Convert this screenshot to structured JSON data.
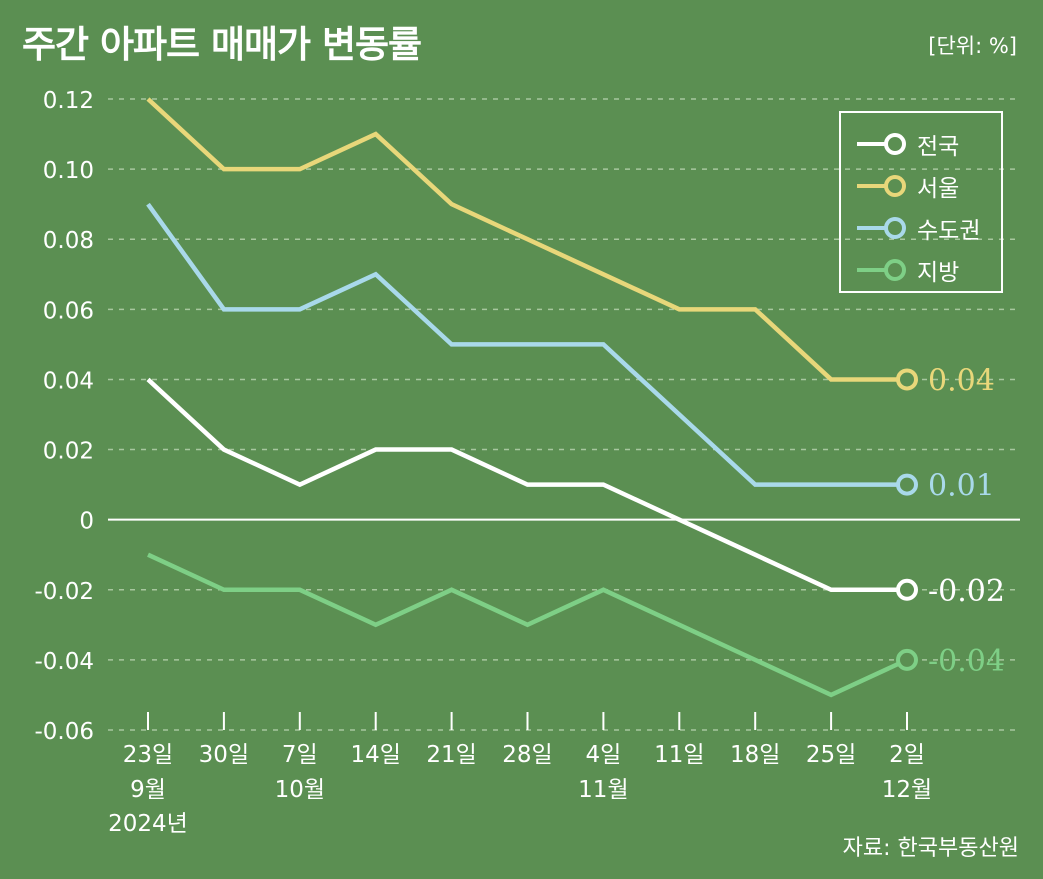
{
  "title": "주간 아파트 매매가 변동률",
  "unit": "[단위: %]",
  "source": "자료: 한국부동산원",
  "colors": {
    "background": "#5b8f52",
    "nationwide": "#ffffff",
    "seoul": "#e8d77a",
    "capital": "#a9d9ea",
    "regional": "#7ecf86"
  },
  "legend": [
    {
      "label": "전국"
    },
    {
      "label": "서울"
    },
    {
      "label": "수도권"
    },
    {
      "label": "지방"
    }
  ],
  "chart_data": {
    "type": "line",
    "title": "주간 아파트 매매가 변동률",
    "xlabel": "",
    "ylabel": "",
    "ylim": [
      -0.06,
      0.12
    ],
    "y_ticks": [
      "0.12",
      "0.10",
      "0.08",
      "0.06",
      "0.04",
      "0.02",
      "0",
      "-0.02",
      "-0.04",
      "-0.06"
    ],
    "x": [
      "23일",
      "30일",
      "7일",
      "14일",
      "21일",
      "28일",
      "4일",
      "11일",
      "18일",
      "25일",
      "2일"
    ],
    "x_sub": [
      [
        "9월",
        "2024년"
      ],
      [],
      [
        "10월"
      ],
      [],
      [],
      [],
      [
        "11월"
      ],
      [],
      [],
      [],
      [
        "12월"
      ]
    ],
    "series": [
      {
        "name": "서울",
        "values": [
          0.12,
          0.1,
          0.1,
          0.11,
          0.09,
          0.08,
          0.07,
          0.06,
          0.06,
          0.04,
          0.04
        ],
        "end_label": "0.04"
      },
      {
        "name": "수도권",
        "values": [
          0.09,
          0.06,
          0.06,
          0.07,
          0.05,
          0.05,
          0.05,
          0.03,
          0.01,
          0.01,
          0.01
        ],
        "end_label": "0.01"
      },
      {
        "name": "전국",
        "values": [
          0.04,
          0.02,
          0.01,
          0.02,
          0.02,
          0.01,
          0.01,
          0.0,
          -0.01,
          -0.02,
          -0.02
        ],
        "end_label": "-0.02"
      },
      {
        "name": "지방",
        "values": [
          -0.01,
          -0.02,
          -0.02,
          -0.03,
          -0.02,
          -0.03,
          -0.02,
          -0.03,
          -0.04,
          -0.05,
          -0.04
        ],
        "end_label": "-0.04"
      }
    ]
  }
}
